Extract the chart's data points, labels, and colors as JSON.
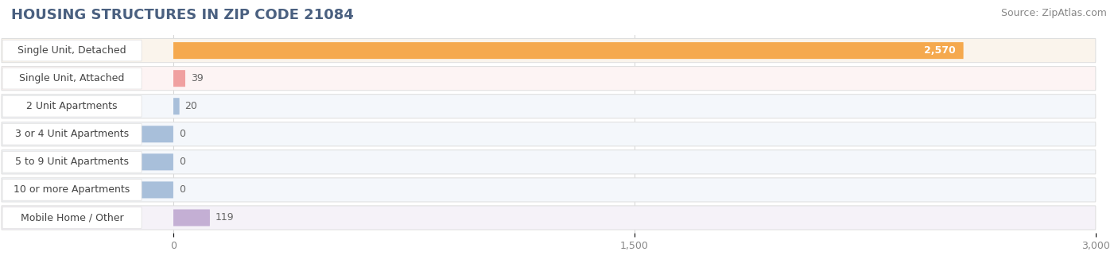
{
  "title": "HOUSING STRUCTURES IN ZIP CODE 21084",
  "source": "Source: ZipAtlas.com",
  "categories": [
    "Single Unit, Detached",
    "Single Unit, Attached",
    "2 Unit Apartments",
    "3 or 4 Unit Apartments",
    "5 to 9 Unit Apartments",
    "10 or more Apartments",
    "Mobile Home / Other"
  ],
  "values": [
    2570,
    39,
    20,
    0,
    0,
    0,
    119
  ],
  "bar_colors": [
    "#f5a94e",
    "#f0a0a0",
    "#a8bfda",
    "#a8bfda",
    "#a8bfda",
    "#a8bfda",
    "#c4afd4"
  ],
  "row_bg_colors": [
    "#faf4ec",
    "#fdf4f4",
    "#f4f7fb",
    "#f4f7fb",
    "#f4f7fb",
    "#f4f7fb",
    "#f5f2f8"
  ],
  "label_pill_color": "#ffffff",
  "label_pill_edge": "#dddddd",
  "xlim_data": [
    0,
    3000
  ],
  "xticks": [
    0,
    1500,
    3000
  ],
  "xtick_labels": [
    "0",
    "1,500",
    "3,000"
  ],
  "background_color": "#ffffff",
  "grid_color": "#cccccc",
  "title_fontsize": 13,
  "source_fontsize": 9,
  "label_fontsize": 9,
  "value_fontsize": 9,
  "title_color": "#4a6080",
  "source_color": "#888888",
  "label_color": "#444444",
  "value_color_dark": "#ffffff",
  "value_color_light": "#666666"
}
